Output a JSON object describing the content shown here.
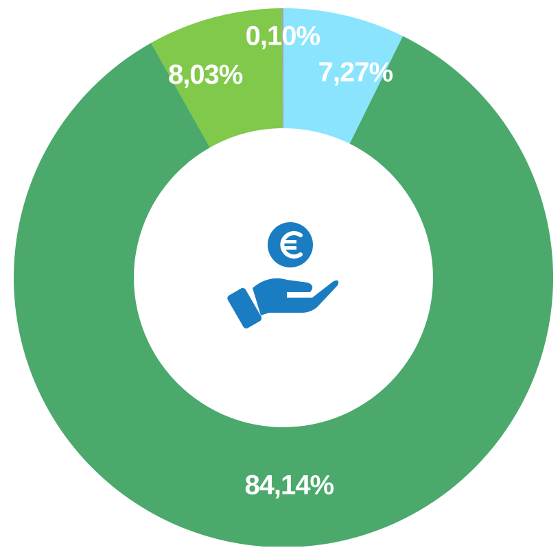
{
  "chart_data": {
    "type": "donut",
    "categories": [
      null,
      null,
      null,
      null
    ],
    "values": [
      7.27,
      84.14,
      8.03,
      0.1
    ],
    "value_labels": [
      "7,27%",
      "84,14%",
      "8,03%",
      "0,10%"
    ],
    "colors": [
      "#8ae4fd",
      "#4aa96b",
      "#80c94a",
      "#a3a3a3"
    ]
  }
}
